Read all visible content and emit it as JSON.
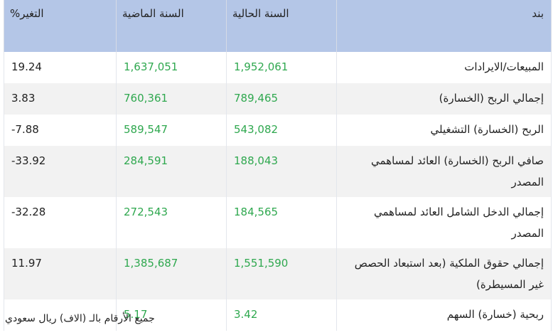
{
  "table": {
    "headers": {
      "item": "بند",
      "current": "السنة الحالية",
      "previous": "السنة الماضية",
      "change": "التغير%"
    },
    "rows": [
      {
        "item": "المبيعات/الايرادات",
        "current": "1,952,061",
        "previous": "1,637,051",
        "change": "19.24"
      },
      {
        "item": "إجمالي الربح (الخسارة)",
        "current": "789,465",
        "previous": "760,361",
        "change": "3.83"
      },
      {
        "item": "الربح (الخسارة) التشغيلي",
        "current": "543,082",
        "previous": "589,547",
        "change": "-7.88"
      },
      {
        "item": "صافي الربح (الخسارة) العائد لمساهمي المصدر",
        "current": "188,043",
        "previous": "284,591",
        "change": "-33.92"
      },
      {
        "item": "إجمالي الدخل الشامل العائد لمساهمي المصدر",
        "current": "184,565",
        "previous": "272,543",
        "change": "-32.28"
      },
      {
        "item": "إجمالي حقوق الملكية (بعد استبعاد الحصص غير المسيطرة)",
        "current": "1,551,590",
        "previous": "1,385,687",
        "change": "11.97"
      },
      {
        "item": "ربحية (خسارة) السهم",
        "current": "3.42",
        "previous": "5.17",
        "change": ""
      }
    ]
  },
  "footnote": "جميع الأرقام بالـ (الاف) ريال سعودي",
  "colors": {
    "header_bg": "#b4c6e7",
    "value_green": "#2fa84f",
    "alt_row_bg": "#f2f2f2"
  }
}
